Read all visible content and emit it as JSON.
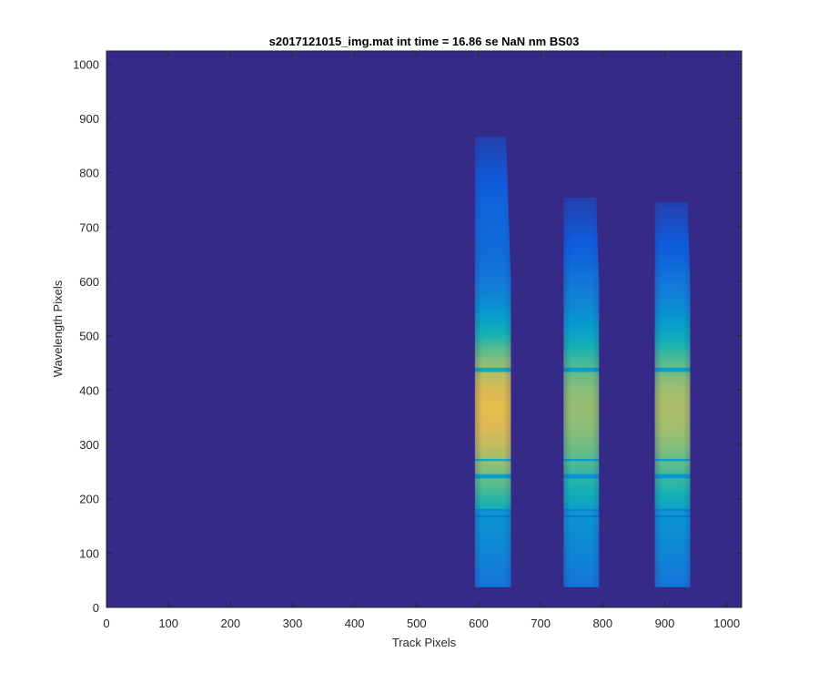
{
  "chart_data": {
    "type": "heatmap",
    "title": "s2017121015_img.mat int time = 16.86 se  NaN nm BS03",
    "xlabel": "Track Pixels",
    "ylabel": "Wavelength Pixels",
    "xlim": [
      0,
      1024
    ],
    "ylim": [
      0,
      1024
    ],
    "xticks": [
      0,
      100,
      200,
      300,
      400,
      500,
      600,
      700,
      800,
      900,
      1000
    ],
    "yticks": [
      0,
      100,
      200,
      300,
      400,
      500,
      600,
      700,
      800,
      900,
      1000
    ],
    "colormap": "parula",
    "background_color": "#352a87",
    "tracks": [
      {
        "name": "track-1",
        "x_start": 594,
        "x_end": 652,
        "y_start": 38,
        "y_top": 865,
        "peak_y": 370,
        "peak_level": 0.88,
        "dark_lines_y": [
          168,
          180,
          242,
          272,
          438
        ]
      },
      {
        "name": "track-2",
        "x_start": 737,
        "x_end": 794,
        "y_start": 38,
        "y_top": 752,
        "peak_y": 370,
        "peak_level": 0.72,
        "dark_lines_y": [
          168,
          180,
          242,
          272,
          438
        ]
      },
      {
        "name": "track-3",
        "x_start": 884,
        "x_end": 941,
        "y_start": 38,
        "y_top": 745,
        "peak_y": 370,
        "peak_level": 0.76,
        "dark_lines_y": [
          168,
          180,
          242,
          272,
          438
        ]
      }
    ]
  }
}
